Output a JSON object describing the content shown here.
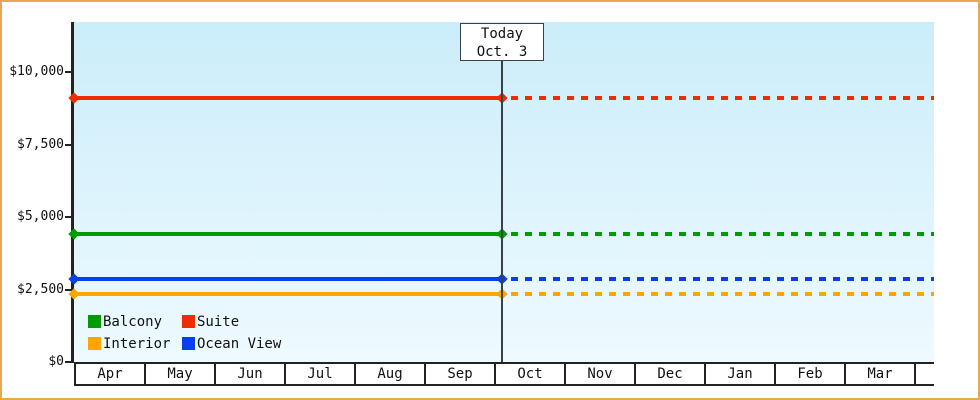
{
  "frame": {
    "border_color": "#E9A750",
    "background": "#FFFFFF"
  },
  "chart_data": {
    "type": "line",
    "title": "",
    "xlabel": "",
    "ylabel": "",
    "grid": false,
    "plot_bg_gradient": [
      "#CBEDFA",
      "#EEFAFF"
    ],
    "categories": [
      "Apr",
      "May",
      "Jun",
      "Jul",
      "Aug",
      "Sep",
      "Oct",
      "Nov",
      "Dec",
      "Jan",
      "Feb",
      "Mar"
    ],
    "series": [
      {
        "name": "Suite",
        "color": "#EE2C00",
        "values": [
          9100,
          9100,
          9100,
          9100,
          9100,
          9100,
          9100,
          9100,
          9100,
          9100,
          9100,
          9100
        ]
      },
      {
        "name": "Balcony",
        "color": "#009B00",
        "values": [
          4400,
          4400,
          4400,
          4400,
          4400,
          4400,
          4400,
          4400,
          4400,
          4400,
          4400,
          4400
        ]
      },
      {
        "name": "Ocean View",
        "color": "#0540E8",
        "values": [
          2850,
          2850,
          2850,
          2850,
          2850,
          2850,
          2850,
          2850,
          2850,
          2850,
          2850,
          2850
        ]
      },
      {
        "name": "Interior",
        "color": "#FFA500",
        "values": [
          2350,
          2350,
          2350,
          2350,
          2350,
          2350,
          2350,
          2350,
          2350,
          2350,
          2350,
          2350
        ]
      }
    ],
    "y_axis": {
      "ticks": [
        {
          "label": "$10,000",
          "value": 10000
        },
        {
          "label": "$7,500",
          "value": 7500
        },
        {
          "label": "$5,000",
          "value": 5000
        },
        {
          "label": "$2,500",
          "value": 2500
        },
        {
          "label": "$0",
          "value": 0
        }
      ],
      "min": 0,
      "max_visible": 11700
    },
    "today": {
      "line1": "Today",
      "line2": "Oct. 3",
      "month": "Oct",
      "day": 3,
      "style_before_today": "solid",
      "style_after_today": "dashed"
    },
    "legend": {
      "position": "bottom-left-inside-plot",
      "items": [
        {
          "label": "Balcony",
          "color": "#009B00"
        },
        {
          "label": "Suite",
          "color": "#EE2C00"
        },
        {
          "label": "Interior",
          "color": "#FFA500"
        },
        {
          "label": "Ocean View",
          "color": "#0540E8"
        }
      ]
    }
  }
}
